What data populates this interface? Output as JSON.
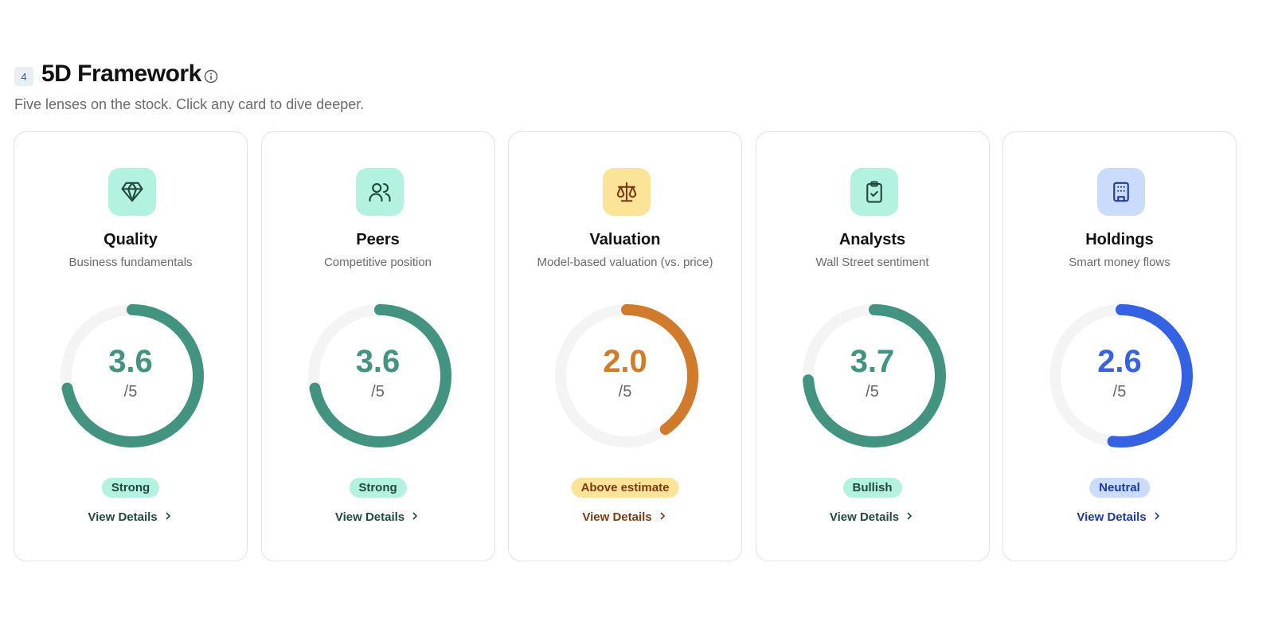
{
  "header": {
    "step": "4",
    "title": "5D Framework",
    "subtitle": "Five lenses on the stock. Click any card to dive deeper."
  },
  "cards": [
    {
      "title": "Quality",
      "subtitle": "Business fundamentals",
      "score": {
        "value": 3.6,
        "label": "3.6"
      },
      "max": {
        "value": 5,
        "label": "/5"
      },
      "badge": "Strong",
      "link": "View Details"
    },
    {
      "title": "Peers",
      "subtitle": "Competitive position",
      "score": {
        "value": 3.6,
        "label": "3.6"
      },
      "max": {
        "value": 5,
        "label": "/5"
      },
      "badge": "Strong",
      "link": "View Details"
    },
    {
      "title": "Valuation",
      "subtitle": "Model-based valuation (vs. price)",
      "score": {
        "value": 2.0,
        "label": "2.0"
      },
      "max": {
        "value": 5,
        "label": "/5"
      },
      "badge": "Above estimate",
      "link": "View Details"
    },
    {
      "title": "Analysts",
      "subtitle": "Wall Street sentiment",
      "score": {
        "value": 3.7,
        "label": "3.7"
      },
      "max": {
        "value": 5,
        "label": "/5"
      },
      "badge": "Bullish",
      "link": "View Details"
    },
    {
      "title": "Holdings",
      "subtitle": "Smart money flows",
      "score": {
        "value": 2.6,
        "label": "2.6"
      },
      "max": {
        "value": 5,
        "label": "/5"
      },
      "badge": "Neutral",
      "link": "View Details"
    }
  ]
}
